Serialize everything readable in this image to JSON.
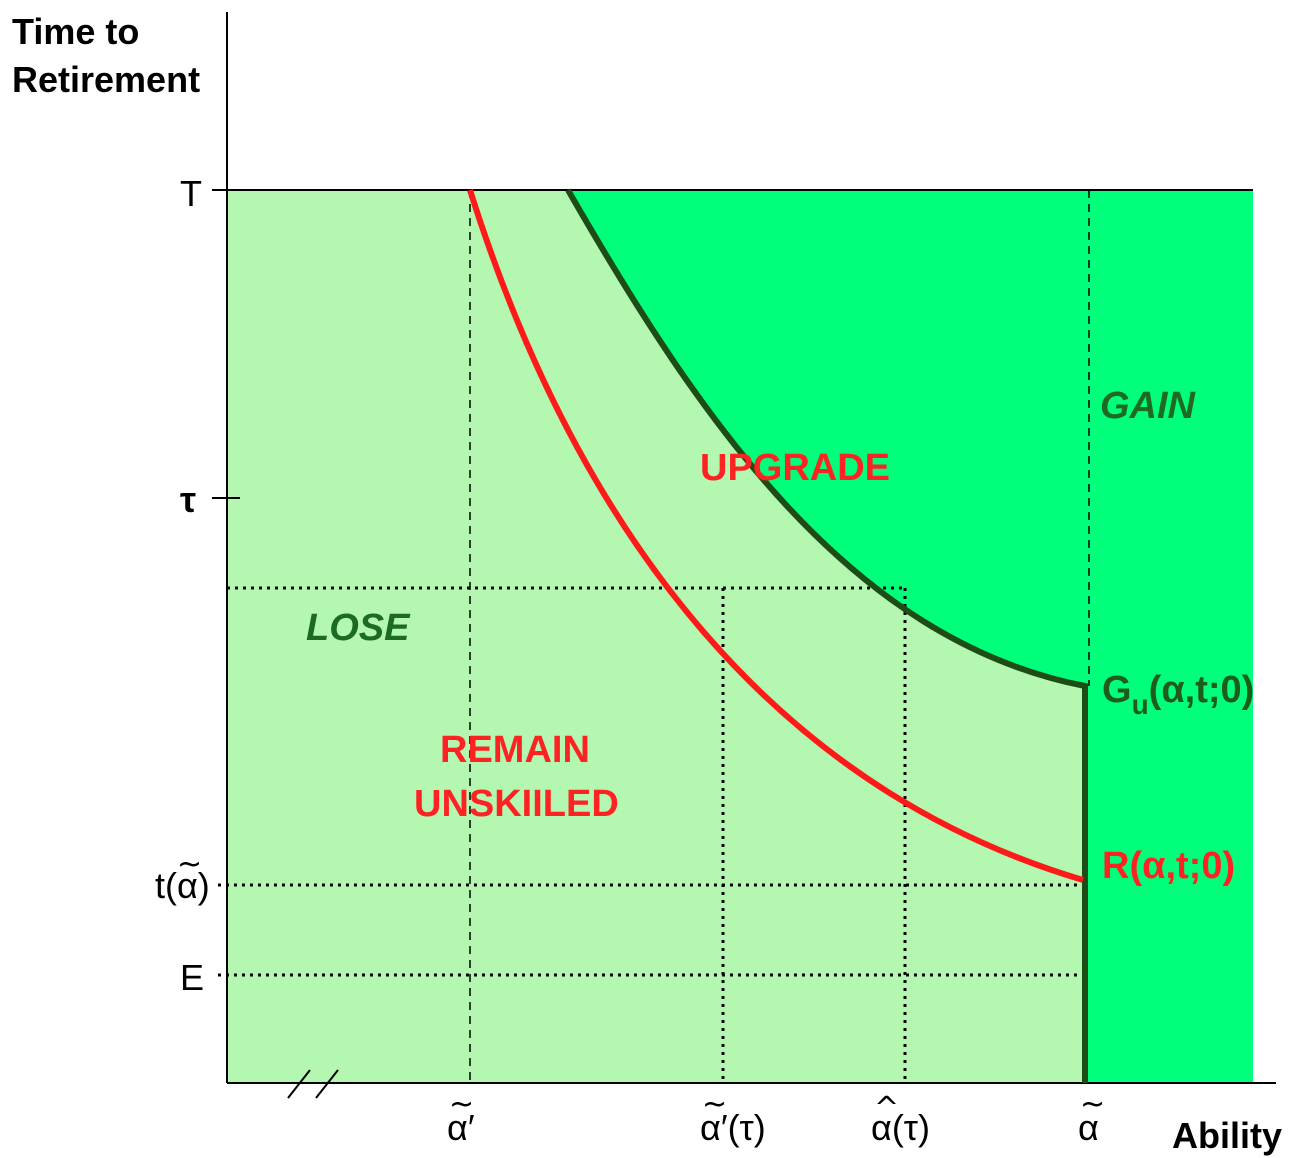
{
  "axes": {
    "y_title_line1": "Time to",
    "y_title_line2": "Retirement",
    "x_title": "Ability"
  },
  "y_ticks": {
    "T": "T",
    "tau": "τ",
    "t_alpha_tilde": "t(α)",
    "E": "E"
  },
  "x_ticks": {
    "alpha_tilde_prime": "α′",
    "alpha_tilde_prime_tau": "α′(τ)",
    "alpha_hat_tau": "α(τ)",
    "alpha_tilde": "α"
  },
  "accents": {
    "tilde": "~",
    "hat": "^"
  },
  "regions": {
    "gain": "GAIN",
    "upgrade": "UPGRADE",
    "lose": "LOSE",
    "remain_line1": "REMAIN",
    "remain_line2": "UNSKIILED"
  },
  "curves": {
    "g_main": "G",
    "g_sub": "u",
    "g_args": "(α,t;0)",
    "r_label": "R(α,t;0)"
  },
  "colors": {
    "light_green": "#b3f7b0",
    "bright_green": "#00ff7a",
    "dark_green_curve": "#1d4d17",
    "red_curve": "#ff1a1a",
    "axis": "#000000"
  }
}
